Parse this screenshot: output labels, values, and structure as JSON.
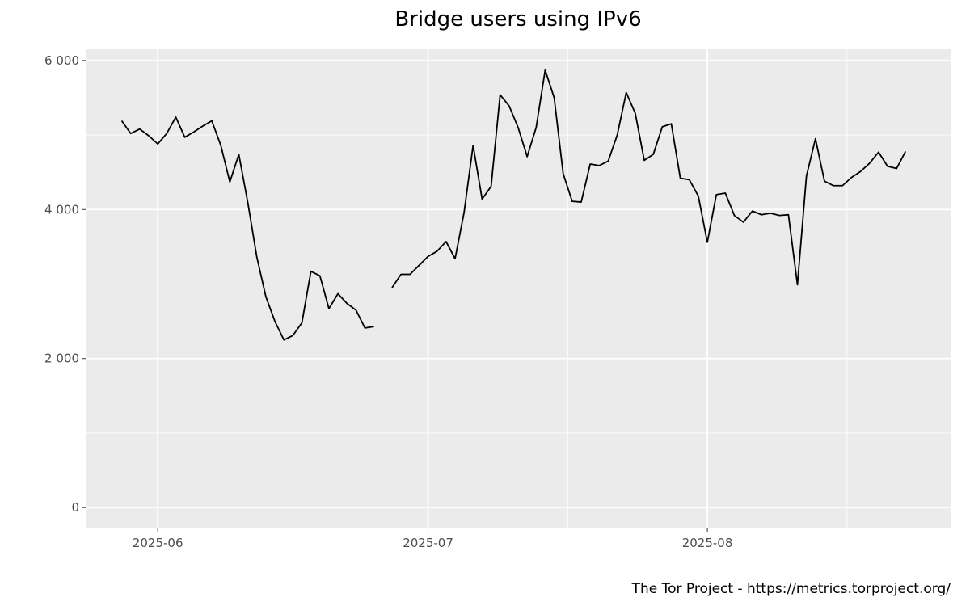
{
  "chart_data": {
    "type": "line",
    "title": "Bridge users using IPv6",
    "xlabel": "",
    "ylabel": "",
    "caption": "The Tor Project - https://metrics.torproject.org/",
    "x_ticks": [
      {
        "date": "2025-06-01",
        "label": "2025-06"
      },
      {
        "date": "2025-07-01",
        "label": "2025-07"
      },
      {
        "date": "2025-08-01",
        "label": "2025-08"
      }
    ],
    "y_ticks": [
      {
        "value": 0,
        "label": "0"
      },
      {
        "value": 2000,
        "label": "2 000"
      },
      {
        "value": 4000,
        "label": "4 000"
      },
      {
        "value": 6000,
        "label": "6 000"
      }
    ],
    "xlim": [
      "2025-05-24",
      "2025-08-28"
    ],
    "ylim": [
      -280,
      6150
    ],
    "grid": true,
    "colors": {
      "line": "#000000",
      "panel": "#ebebeb",
      "grid": "#ffffff"
    },
    "series": [
      {
        "points": [
          [
            "2025-05-28",
            5190
          ],
          [
            "2025-05-29",
            5020
          ],
          [
            "2025-05-30",
            5080
          ],
          [
            "2025-05-31",
            4990
          ],
          [
            "2025-06-01",
            4880
          ],
          [
            "2025-06-02",
            5020
          ],
          [
            "2025-06-03",
            5240
          ],
          [
            "2025-06-04",
            4970
          ],
          [
            "2025-06-05",
            5040
          ],
          [
            "2025-06-06",
            5120
          ],
          [
            "2025-06-07",
            5190
          ],
          [
            "2025-06-08",
            4860
          ],
          [
            "2025-06-09",
            4370
          ],
          [
            "2025-06-10",
            4740
          ],
          [
            "2025-06-11",
            4090
          ],
          [
            "2025-06-12",
            3360
          ],
          [
            "2025-06-13",
            2830
          ],
          [
            "2025-06-14",
            2500
          ],
          [
            "2025-06-15",
            2250
          ],
          [
            "2025-06-16",
            2310
          ],
          [
            "2025-06-17",
            2480
          ],
          [
            "2025-06-18",
            3170
          ],
          [
            "2025-06-19",
            3110
          ],
          [
            "2025-06-20",
            2670
          ],
          [
            "2025-06-21",
            2870
          ],
          [
            "2025-06-22",
            2740
          ],
          [
            "2025-06-23",
            2650
          ],
          [
            "2025-06-24",
            2410
          ],
          [
            "2025-06-25",
            2430
          ]
        ]
      },
      {
        "points": [
          [
            "2025-06-27",
            2950
          ],
          [
            "2025-06-28",
            3130
          ],
          [
            "2025-06-29",
            3130
          ],
          [
            "2025-06-30",
            3250
          ],
          [
            "2025-07-01",
            3370
          ],
          [
            "2025-07-02",
            3440
          ],
          [
            "2025-07-03",
            3570
          ],
          [
            "2025-07-04",
            3340
          ],
          [
            "2025-07-05",
            3960
          ],
          [
            "2025-07-06",
            4860
          ],
          [
            "2025-07-07",
            4140
          ],
          [
            "2025-07-08",
            4310
          ],
          [
            "2025-07-09",
            5540
          ],
          [
            "2025-07-10",
            5390
          ],
          [
            "2025-07-11",
            5100
          ],
          [
            "2025-07-12",
            4710
          ],
          [
            "2025-07-13",
            5100
          ],
          [
            "2025-07-14",
            5870
          ],
          [
            "2025-07-15",
            5500
          ],
          [
            "2025-07-16",
            4480
          ],
          [
            "2025-07-17",
            4110
          ],
          [
            "2025-07-18",
            4100
          ],
          [
            "2025-07-19",
            4610
          ],
          [
            "2025-07-20",
            4590
          ],
          [
            "2025-07-21",
            4650
          ],
          [
            "2025-07-22",
            5000
          ],
          [
            "2025-07-23",
            5570
          ],
          [
            "2025-07-24",
            5290
          ],
          [
            "2025-07-25",
            4660
          ],
          [
            "2025-07-26",
            4740
          ],
          [
            "2025-07-27",
            5110
          ],
          [
            "2025-07-28",
            5150
          ],
          [
            "2025-07-29",
            4420
          ],
          [
            "2025-07-30",
            4400
          ],
          [
            "2025-07-31",
            4180
          ],
          [
            "2025-08-01",
            3560
          ],
          [
            "2025-08-02",
            4200
          ],
          [
            "2025-08-03",
            4220
          ],
          [
            "2025-08-04",
            3920
          ],
          [
            "2025-08-05",
            3830
          ],
          [
            "2025-08-06",
            3980
          ],
          [
            "2025-08-07",
            3930
          ],
          [
            "2025-08-08",
            3950
          ],
          [
            "2025-08-09",
            3920
          ],
          [
            "2025-08-10",
            3930
          ],
          [
            "2025-08-11",
            2990
          ],
          [
            "2025-08-12",
            4450
          ],
          [
            "2025-08-13",
            4950
          ],
          [
            "2025-08-14",
            4380
          ],
          [
            "2025-08-15",
            4320
          ],
          [
            "2025-08-16",
            4320
          ],
          [
            "2025-08-17",
            4430
          ],
          [
            "2025-08-18",
            4510
          ],
          [
            "2025-08-19",
            4620
          ],
          [
            "2025-08-20",
            4770
          ],
          [
            "2025-08-21",
            4580
          ],
          [
            "2025-08-22",
            4550
          ],
          [
            "2025-08-23",
            4780
          ]
        ]
      }
    ]
  }
}
